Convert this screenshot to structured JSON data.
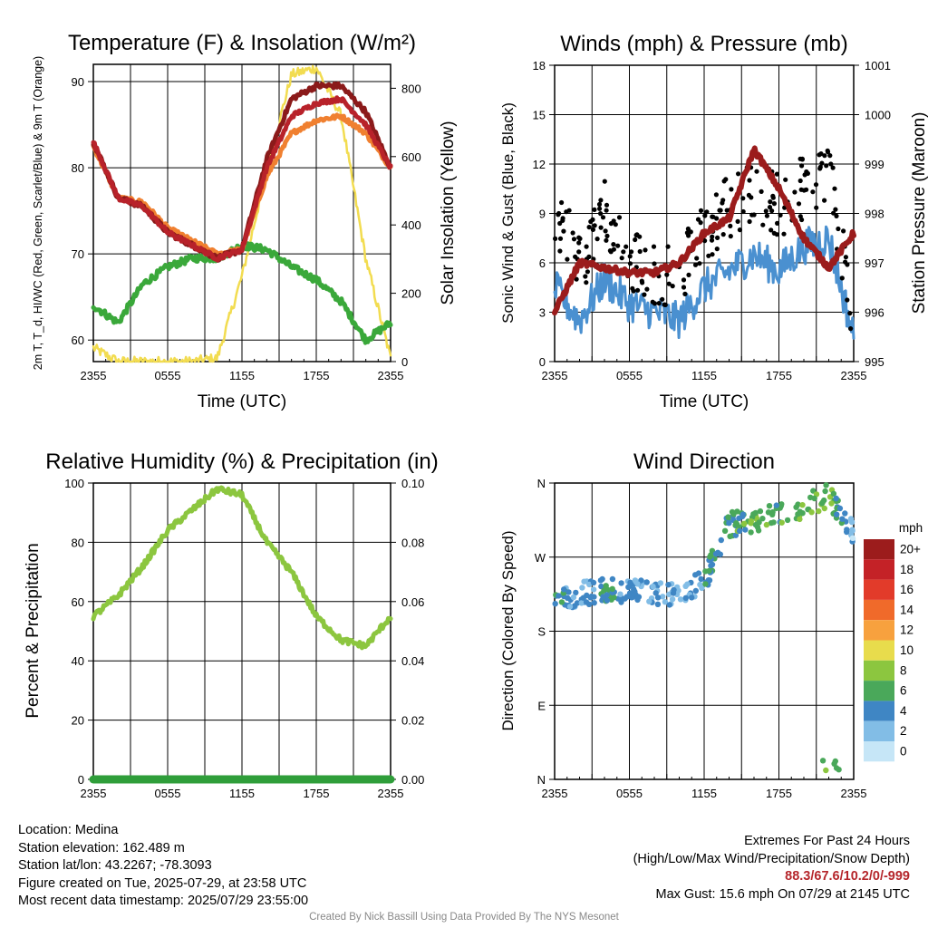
{
  "colors": {
    "temperature": "#b8222a",
    "dewpoint": "#3aa83a",
    "nine_m_temp": "#f08030",
    "heat_index_maroon": "#8b1a1a",
    "insolation": "#f2dc50",
    "wind_speed": "#4a90d0",
    "gust": "#000000",
    "pressure": "#9b1c1c",
    "humidity": "#8cc63f",
    "precip": "#2f9e3a"
  },
  "wind_colorbar": {
    "unit": "mph",
    "labels": [
      "20+",
      "18",
      "16",
      "14",
      "12",
      "10",
      "8",
      "6",
      "4",
      "2",
      "0"
    ],
    "colors": [
      "#9c1c1c",
      "#c42227",
      "#e23b2a",
      "#f06a2a",
      "#f7a13e",
      "#e8dc4c",
      "#8cc63f",
      "#4aa85a",
      "#3f86c4",
      "#82bde6",
      "#c6e6f7"
    ]
  },
  "chart_data": [
    {
      "type": "line",
      "title": "Temperature (F) & Insolation (W/m²)",
      "xlabel": "Time (UTC)",
      "ylabel": "2m T, T_d, HI/WC (Red, Green, Scarlet/Blue) & 9m T (Orange)",
      "y2label": "Solar Insolation (Yellow)",
      "x_ticks": [
        "2355",
        "0555",
        "1155",
        "1755",
        "2355"
      ],
      "y_ticks": [
        60,
        70,
        80,
        90
      ],
      "y2_ticks": [
        0,
        200,
        400,
        600,
        800
      ],
      "ylim": [
        57.5,
        92
      ],
      "y2lim": [
        0,
        870
      ],
      "x_hours": [
        0,
        2,
        4,
        6,
        8,
        10,
        12,
        14,
        16,
        18,
        20,
        22,
        24
      ],
      "series": [
        {
          "name": "2m T",
          "values": [
            83,
            76.5,
            75.5,
            72.5,
            71,
            69.5,
            70.5,
            80,
            86,
            87.5,
            88,
            85,
            80
          ]
        },
        {
          "name": "9m T",
          "values": [
            82.5,
            76.5,
            76,
            73,
            71.5,
            70,
            70.5,
            79,
            84,
            85.5,
            86,
            84,
            80
          ]
        },
        {
          "name": "HI/WC",
          "values": [
            83,
            76.5,
            75.5,
            72.5,
            71,
            69.5,
            70.5,
            81,
            88,
            89.5,
            89.5,
            86.5,
            80
          ]
        },
        {
          "name": "Td",
          "values": [
            64,
            62,
            66.5,
            68.5,
            69.5,
            69.5,
            71,
            70.5,
            68.5,
            67,
            64.5,
            60,
            62
          ]
        },
        {
          "name": "Insolation",
          "values": [
            40,
            0,
            0,
            0,
            0,
            10,
            250,
            560,
            840,
            860,
            720,
            300,
            10
          ]
        }
      ]
    },
    {
      "type": "line",
      "title": "Winds (mph) & Pressure (mb)",
      "xlabel": "Time (UTC)",
      "ylabel": "Sonic Wind & Gust (Blue, Black)",
      "y2label": "Station Pressure (Maroon)",
      "x_ticks": [
        "2355",
        "0555",
        "1155",
        "1755",
        "2355"
      ],
      "y_ticks": [
        0,
        3,
        6,
        9,
        12,
        15,
        18
      ],
      "y2_ticks": [
        995,
        996,
        997,
        998,
        999,
        1000,
        1001
      ],
      "ylim": [
        0,
        18
      ],
      "y2lim": [
        995,
        1001
      ],
      "x_hours": [
        0,
        2,
        4,
        6,
        8,
        10,
        12,
        14,
        16,
        18,
        20,
        22,
        24
      ],
      "series": [
        {
          "name": "Sonic Wind",
          "values": [
            4.5,
            2.5,
            5,
            3.5,
            3,
            2.5,
            4.5,
            5.5,
            6.5,
            5.5,
            7,
            7.5,
            1.5
          ]
        },
        {
          "name": "Gust",
          "values": [
            9,
            6,
            9,
            6,
            5.5,
            5,
            8,
            9.5,
            10.5,
            9.5,
            10.5,
            11.5,
            2.5
          ]
        },
        {
          "name": "Station Pressure",
          "values": [
            996,
            997,
            996.9,
            996.8,
            996.8,
            997,
            997.6,
            997.9,
            999.3,
            998.5,
            997.5,
            996.9,
            997.6
          ]
        }
      ]
    },
    {
      "type": "line",
      "title": "Relative Humidity (%) & Precipitation (in)",
      "xlabel": "",
      "ylabel": "Percent & Precipitation",
      "x_ticks": [
        "2355",
        "0555",
        "1155",
        "1755",
        "2355"
      ],
      "y_ticks": [
        0,
        20,
        40,
        60,
        80,
        100
      ],
      "y2_ticks": [
        "0.00",
        "0.02",
        "0.04",
        "0.06",
        "0.08",
        "0.10"
      ],
      "ylim": [
        0,
        100
      ],
      "y2lim": [
        0,
        0.1
      ],
      "x_hours": [
        0,
        2,
        4,
        6,
        8,
        10,
        12,
        14,
        16,
        18,
        20,
        22,
        24
      ],
      "series": [
        {
          "name": "Relative Humidity",
          "values": [
            55,
            62,
            72,
            84,
            91,
            98,
            96,
            80,
            70,
            55,
            47,
            45,
            55
          ]
        },
        {
          "name": "Precipitation",
          "values": [
            0,
            0,
            0,
            0,
            0,
            0,
            0,
            0,
            0,
            0,
            0,
            0,
            0
          ]
        }
      ]
    },
    {
      "type": "scatter",
      "title": "Wind Direction",
      "xlabel": "",
      "ylabel": "Direction (Colored By Speed)",
      "x_ticks": [
        "2355",
        "0555",
        "1155",
        "1755",
        "2355"
      ],
      "y_ticks": [
        "N",
        "E",
        "S",
        "W",
        "N"
      ],
      "ylim": [
        0,
        360
      ],
      "x_hours": [
        0,
        2,
        4,
        6,
        8,
        10,
        12,
        14,
        16,
        18,
        20,
        22,
        24
      ],
      "series": [
        {
          "name": "Wind Direction",
          "values": [
            220,
            225,
            230,
            228,
            226,
            225,
            240,
            310,
            315,
            320,
            330,
            345,
            300
          ]
        }
      ]
    }
  ],
  "footer": {
    "location": "Location: Medina",
    "elevation": "Station elevation: 162.489 m",
    "latlon": "Station lat/lon: 43.2267; -78.3093",
    "created": "Figure created on Tue, 2025-07-29, at 23:58 UTC",
    "recent": "Most recent data timestamp: 2025/07/29 23:55:00",
    "extremes_title": "Extremes For Past 24 Hours",
    "extremes_legend": "(High/Low/Max Wind/Precipitation/Snow Depth)",
    "extremes_values": "88.3/67.6/10.2/0/-999",
    "max_gust": "Max Gust: 15.6 mph On 07/29 at 2145 UTC",
    "credit": "Created By Nick Bassill Using Data Provided By The NYS Mesonet"
  }
}
